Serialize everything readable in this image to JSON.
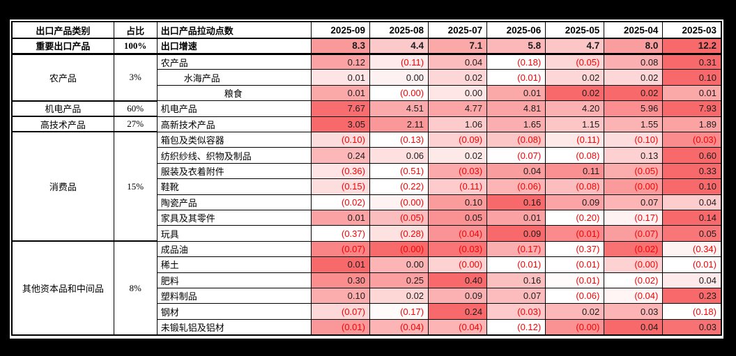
{
  "chart_data": {
    "type": "table",
    "subtype": "row-heatmap",
    "header": {
      "category": "出口产品类别",
      "share": "占比",
      "metric": "出口产品拉动点数"
    },
    "columns": [
      "2025-09",
      "2025-08",
      "2025-07",
      "2025-06",
      "2025-05",
      "2025-04",
      "2025-03"
    ],
    "colors": {
      "heat_max": "#F8696B",
      "heat_min": "#FFFFFF",
      "negative_text": "#FF0000",
      "positive_text": "#1C1C1C",
      "frame": "#000000",
      "grid": "#000000"
    },
    "note_format": "values in parentheses are negative",
    "groups": [
      {
        "category": "重要出口产品",
        "share": "100%",
        "bold": true,
        "rows": [
          {
            "label": "出口增速",
            "indent": 0,
            "bold": true,
            "values": [
              "8.3",
              "4.4",
              "7.1",
              "5.8",
              "4.7",
              "8.0",
              "12.2"
            ]
          }
        ]
      },
      {
        "category": "农产品",
        "share": "3%",
        "rows": [
          {
            "label": "农产品",
            "indent": 0,
            "values": [
              "0.12",
              "(0.11)",
              "0.04",
              "(0.18)",
              "(0.05)",
              "0.08",
              "0.31"
            ]
          },
          {
            "label": "水海产品",
            "indent": 1,
            "values": [
              "0.01",
              "0.00",
              "0.02",
              "(0.01)",
              "0.02",
              "0.02",
              "0.10"
            ]
          },
          {
            "label": "粮食",
            "indent": 2,
            "values": [
              "0.01",
              "(0.00)",
              "0.00",
              "0.01",
              "0.02",
              "0.02",
              "0.01"
            ]
          }
        ]
      },
      {
        "category": "机电产品",
        "share": "60%",
        "rows": [
          {
            "label": "机电产品",
            "indent": 0,
            "values": [
              "7.67",
              "4.51",
              "4.77",
              "4.81",
              "4.20",
              "5.96",
              "7.93"
            ]
          }
        ]
      },
      {
        "category": "高技术产品",
        "share": "27%",
        "rows": [
          {
            "label": "高新技术产品",
            "indent": 0,
            "values": [
              "3.05",
              "2.11",
              "1.06",
              "1.65",
              "1.15",
              "1.55",
              "1.89"
            ]
          }
        ]
      },
      {
        "category": "消费品",
        "share": "15%",
        "rows": [
          {
            "label": "箱包及类似容器",
            "indent": 0,
            "values": [
              "(0.10)",
              "(0.13)",
              "(0.09)",
              "(0.08)",
              "(0.11)",
              "(0.10)",
              "(0.03)"
            ]
          },
          {
            "label": "纺织纱线、织物及制品",
            "indent": 0,
            "values": [
              "0.24",
              "0.06",
              "0.02",
              "(0.07)",
              "(0.08)",
              "0.13",
              "0.60"
            ]
          },
          {
            "label": "服装及衣着附件",
            "indent": 0,
            "values": [
              "(0.36)",
              "(0.51)",
              "(0.03)",
              "0.04",
              "0.11",
              "(0.05)",
              "0.33"
            ]
          },
          {
            "label": "鞋靴",
            "indent": 0,
            "values": [
              "(0.15)",
              "(0.22)",
              "(0.11)",
              "(0.06)",
              "(0.08)",
              "(0.00)",
              "0.10"
            ]
          },
          {
            "label": "陶瓷产品",
            "indent": 0,
            "values": [
              "(0.02)",
              "(0.00)",
              "0.10",
              "0.16",
              "0.09",
              "0.07",
              "0.04"
            ]
          },
          {
            "label": "家具及其零件",
            "indent": 0,
            "values": [
              "0.01",
              "(0.05)",
              "0.05",
              "0.01",
              "(0.20)",
              "(0.17)",
              "0.14"
            ]
          },
          {
            "label": "玩具",
            "indent": 0,
            "values": [
              "(0.37)",
              "(0.28)",
              "(0.04)",
              "0.09",
              "(0.01)",
              "(0.07)",
              "0.05"
            ]
          }
        ]
      },
      {
        "category": "其他资本品和中间品",
        "share": "8%",
        "rows": [
          {
            "label": "成品油",
            "indent": 0,
            "values": [
              "(0.07)",
              "(0.00)",
              "(0.03)",
              "(0.17)",
              "(0.37)",
              "(0.02)",
              "(0.34)"
            ]
          },
          {
            "label": "稀土",
            "indent": 0,
            "values": [
              "0.01",
              "0.00",
              "(0.00)",
              "(0.01)",
              "(0.01)",
              "(0.00)",
              "(0.01)"
            ]
          },
          {
            "label": "肥料",
            "indent": 0,
            "values": [
              "0.30",
              "0.25",
              "0.40",
              "0.16",
              "(0.01)",
              "(0.02)",
              "0.04"
            ]
          },
          {
            "label": "塑料制品",
            "indent": 0,
            "values": [
              "0.10",
              "0.02",
              "0.09",
              "0.07",
              "(0.06)",
              "(0.04)",
              "0.23"
            ]
          },
          {
            "label": "钢材",
            "indent": 0,
            "values": [
              "(0.07)",
              "(0.17)",
              "0.24",
              "(0.03)",
              "0.02",
              "0.03",
              "(0.18)"
            ]
          },
          {
            "label": "未锻轧铝及铝材",
            "indent": 0,
            "values": [
              "(0.01)",
              "(0.04)",
              "(0.04)",
              "(0.12)",
              "(0.00)",
              "0.04",
              "0.03"
            ]
          }
        ]
      }
    ]
  }
}
